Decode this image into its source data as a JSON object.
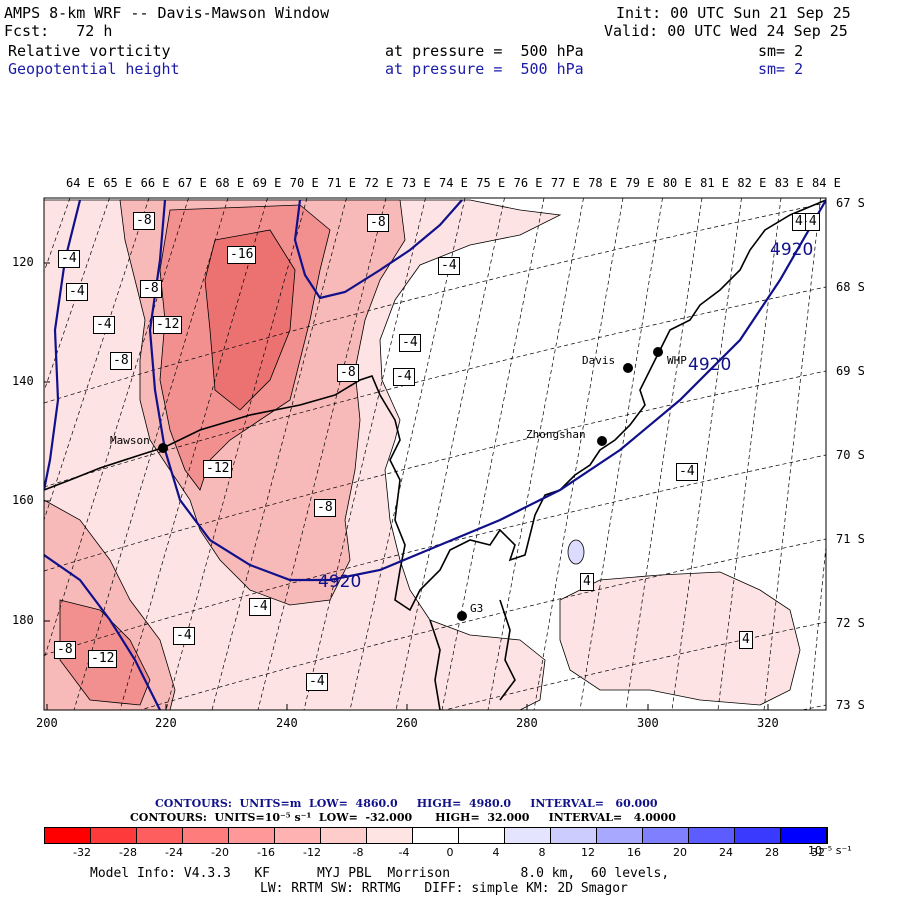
{
  "header": {
    "title": "AMPS 8-km WRF -- Davis-Mawson Window",
    "init": "Init: 00 UTC Sun 21 Sep 25",
    "fcst": "Fcst:   72 h",
    "valid": "Valid: 00 UTC Wed 24 Sep 25",
    "field1": {
      "name": "Relative vorticity",
      "pressure": "at pressure =  500 hPa",
      "sm": "sm= 2"
    },
    "field2": {
      "name": "Geopotential height",
      "pressure": "at pressure =  500 hPa",
      "sm": "sm= 2"
    }
  },
  "lon_labels": [
    "64 E",
    "65 E",
    "66 E",
    "67 E",
    "68 E",
    "69 E",
    "70 E",
    "71 E",
    "72 E",
    "73 E",
    "74 E",
    "75 E",
    "76 E",
    "77 E",
    "78 E",
    "79 E",
    "80 E",
    "81 E",
    "82 E",
    "83 E",
    "84 E"
  ],
  "lat_labels": [
    "67 S",
    "68 S",
    "69 S",
    "70 S",
    "71 S",
    "72 S",
    "73 S"
  ],
  "x_ticks": [
    "200",
    "220",
    "240",
    "260",
    "280",
    "300",
    "320"
  ],
  "y_ticks": [
    "120",
    "140",
    "160",
    "180"
  ],
  "stations": [
    {
      "name": "Davis"
    },
    {
      "name": "WHP"
    },
    {
      "name": "Zhongshan"
    },
    {
      "name": "Mawson"
    },
    {
      "name": "G3"
    }
  ],
  "contour_labels": {
    "vort": [
      "-8",
      "-8",
      "-4",
      "-4",
      "-16",
      "-8",
      "-4",
      "-4",
      "-12",
      "-8",
      "-8",
      "-4",
      "-4",
      "-12",
      "-8",
      "-4",
      "-4",
      "-4",
      "-4",
      "4",
      "4",
      "4",
      "-8",
      "-12",
      "-4",
      "4"
    ],
    "height": [
      "4920",
      "4920",
      "4920"
    ]
  },
  "legend": {
    "line1": {
      "label": "CONTOURS:  UNITS=m  LOW=  4860.0     HIGH=  4980.0     INTERVAL=   60.000"
    },
    "line2": {
      "label": "CONTOURS:  UNITS=10⁻⁵ s⁻¹  LOW=  -32.000      HIGH=  32.000     INTERVAL=   4.0000"
    },
    "scale_values": [
      "-32",
      "-28",
      "-24",
      "-20",
      "-16",
      "-12",
      "-8",
      "-4",
      "0",
      "4",
      "8",
      "12",
      "16",
      "20",
      "24",
      "28",
      "32"
    ],
    "units": "10⁻⁵ s⁻¹",
    "colors": [
      "#ff0000",
      "#ff3a3a",
      "#ff5e5e",
      "#ff7c7c",
      "#ff9898",
      "#ffb2b2",
      "#ffcccc",
      "#ffe4e4",
      "#ffffff",
      "#ffffff",
      "#e4e4ff",
      "#ccccff",
      "#a8a8ff",
      "#8080ff",
      "#5c5cff",
      "#3a3aff",
      "#0000ff"
    ]
  },
  "model_info": {
    "line1": "Model Info: V4.3.3   KF      MYJ PBL  Morrison         8.0 km,  60 levels,",
    "line2": "LW: RRTM SW: RRTMG   DIFF: simple KM: 2D Smagor"
  },
  "colors": {
    "height_contour": "#10108a",
    "vort_fill_light": "#fbdede",
    "vort_fill_mid": "#f6a9a9",
    "vort_fill_dark": "#ee7a7a"
  }
}
